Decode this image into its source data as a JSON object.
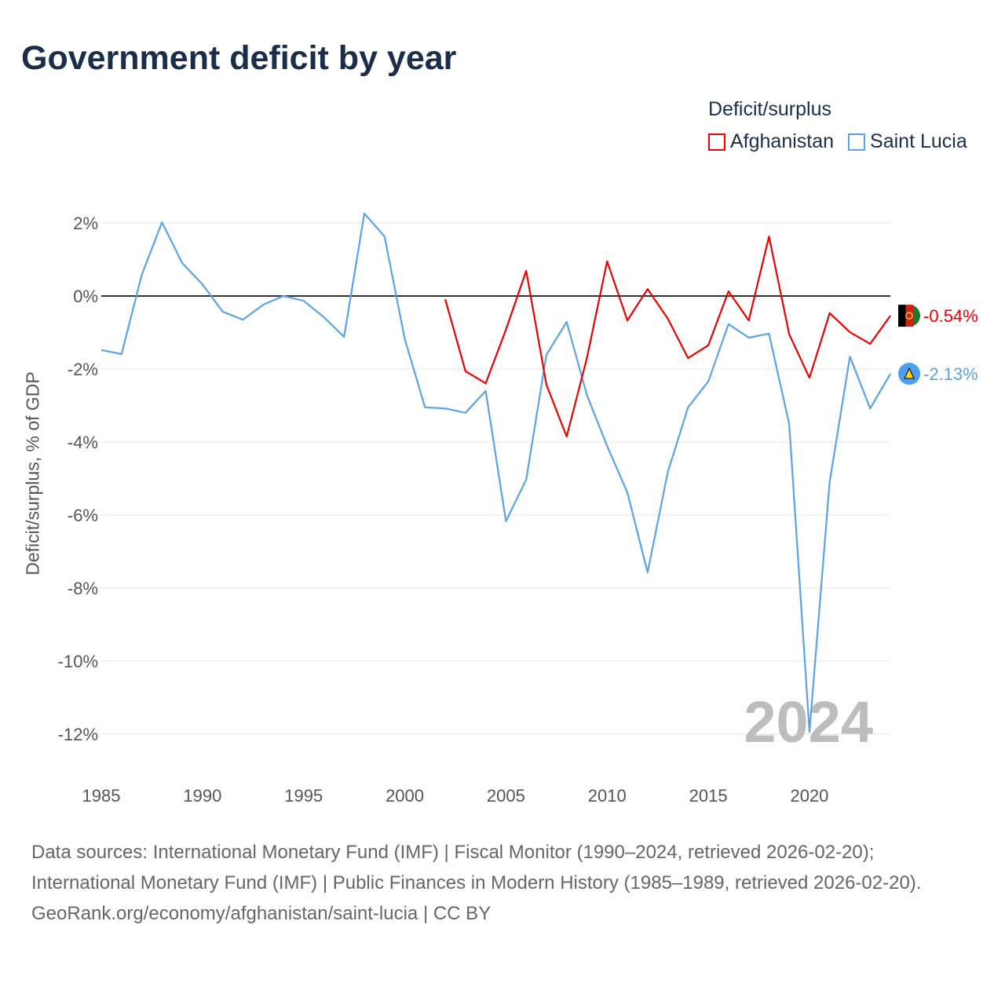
{
  "title": "Government deficit by year",
  "legend": {
    "title": "Deficit/surplus",
    "items": [
      {
        "label": "Afghanistan",
        "color": "#ee0000"
      },
      {
        "label": "Saint Lucia",
        "color": "#5ba3e6"
      }
    ]
  },
  "year_watermark": "2024",
  "footer": {
    "sources": "Data sources: International Monetary Fund (IMF) | Fiscal Monitor (1990–2024, retrieved 2026-02-20); International Monetary Fund (IMF) | Public Finances in Modern History (1985–1989, retrieved 2026-02-20).",
    "credit": "GeoRank.org/economy/afghanistan/saint-lucia | CC BY"
  },
  "chart_data": {
    "type": "line",
    "title": "Government deficit by year",
    "xlabel": "",
    "ylabel": "Deficit/surplus, % of GDP",
    "xlim": [
      1985,
      2024
    ],
    "ylim": [
      -13,
      2.5
    ],
    "xticks": [
      1985,
      1990,
      1995,
      2000,
      2005,
      2010,
      2015,
      2020
    ],
    "xtick_labels": [
      "1985",
      "1990",
      "1995",
      "2000",
      "2005",
      "2010",
      "2015",
      "2020"
    ],
    "yticks": [
      2,
      0,
      -2,
      -4,
      -6,
      -8,
      -10,
      -12
    ],
    "ytick_labels": [
      "2%",
      "0%",
      "-2%",
      "-4%",
      "-6%",
      "-8%",
      "-10%",
      "-12%"
    ],
    "grid": true,
    "legend_position": "top-right",
    "series": [
      {
        "name": "Afghanistan",
        "color": "#ee0000",
        "end_label": "-0.54%",
        "x": [
          2002,
          2003,
          2004,
          2005,
          2006,
          2007,
          2008,
          2009,
          2010,
          2011,
          2012,
          2013,
          2014,
          2015,
          2016,
          2017,
          2018,
          2019,
          2020,
          2021,
          2022,
          2023,
          2024
        ],
        "values": [
          -0.09,
          -2.06,
          -2.39,
          -0.92,
          0.69,
          -2.43,
          -3.85,
          -1.7,
          0.95,
          -0.67,
          0.19,
          -0.62,
          -1.7,
          -1.35,
          0.13,
          -0.67,
          1.63,
          -1.05,
          -2.24,
          -0.47,
          -0.99,
          -1.31,
          -0.54
        ]
      },
      {
        "name": "Saint Lucia",
        "color": "#5ba3e6",
        "end_label": "-2.13%",
        "x": [
          1985,
          1986,
          1987,
          1988,
          1989,
          1990,
          1991,
          1992,
          1993,
          1994,
          1995,
          1996,
          1997,
          1998,
          1999,
          2000,
          2001,
          2002,
          2003,
          2004,
          2005,
          2006,
          2007,
          2008,
          2009,
          2010,
          2011,
          2012,
          2013,
          2014,
          2015,
          2016,
          2017,
          2018,
          2019,
          2020,
          2021,
          2022,
          2023,
          2024
        ],
        "values": [
          -1.48,
          -1.59,
          0.58,
          2.02,
          0.9,
          0.32,
          -0.43,
          -0.65,
          -0.24,
          0.0,
          -0.13,
          -0.58,
          -1.12,
          2.26,
          1.63,
          -1.18,
          -3.05,
          -3.08,
          -3.2,
          -2.6,
          -6.17,
          -5.03,
          -1.61,
          -0.71,
          -2.71,
          -4.11,
          -5.38,
          -7.57,
          -4.82,
          -3.05,
          -2.34,
          -0.77,
          -1.14,
          -1.03,
          -3.51,
          -11.94,
          -5.08,
          -1.66,
          -3.08,
          -2.13
        ]
      }
    ]
  }
}
